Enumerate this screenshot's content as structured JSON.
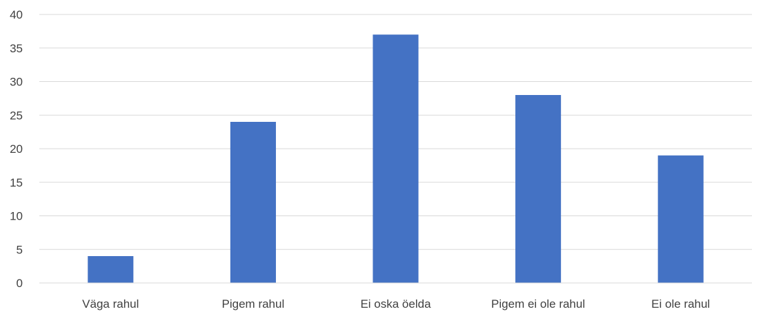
{
  "chart_data": {
    "type": "bar",
    "categories": [
      "Väga rahul",
      "Pigem rahul",
      "Ei oska öelda",
      "Pigem ei ole rahul",
      "Ei ole rahul"
    ],
    "values": [
      4,
      24,
      37,
      28,
      19
    ],
    "title": "",
    "xlabel": "",
    "ylabel": "",
    "ylim": [
      0,
      40
    ],
    "yticks": [
      0,
      5,
      10,
      15,
      20,
      25,
      30,
      35,
      40
    ],
    "grid": true,
    "legend": "none",
    "bar_color": "#4472C4",
    "grid_color": "#D9D9D9"
  }
}
